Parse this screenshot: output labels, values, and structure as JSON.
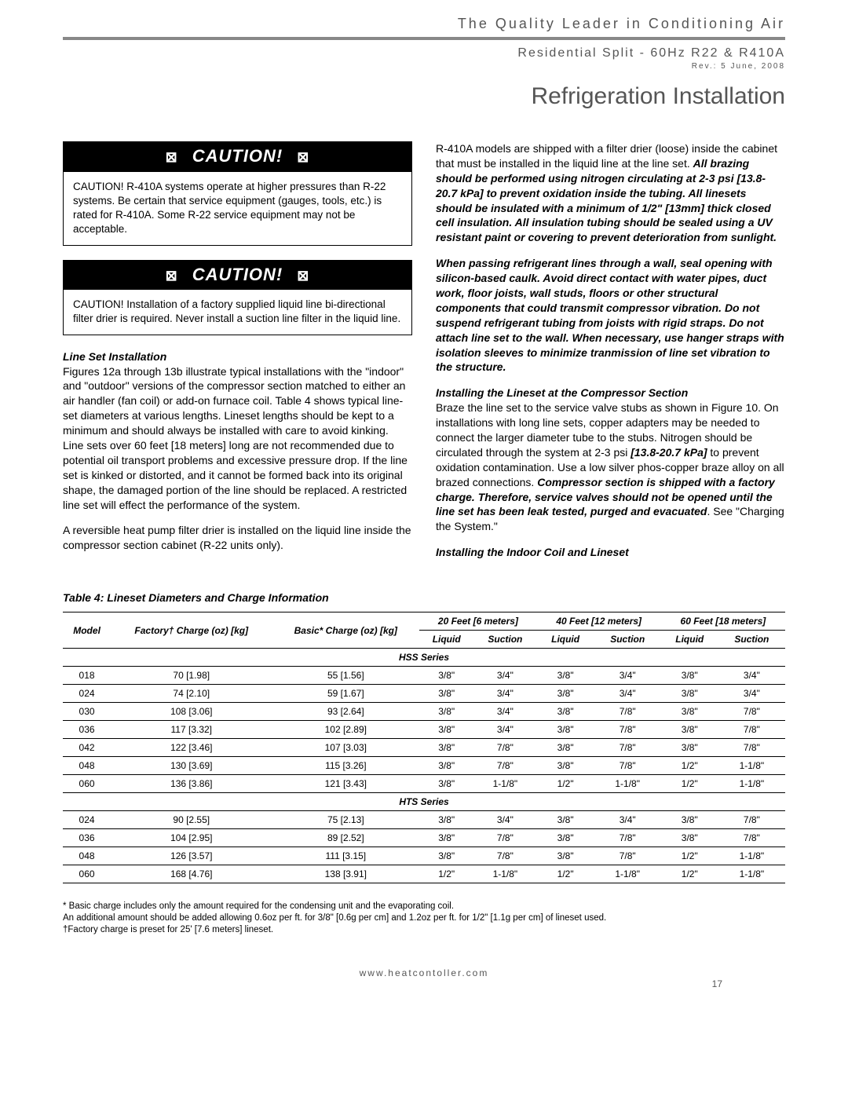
{
  "header": {
    "tagline": "The Quality Leader in Conditioning Air",
    "subhead": "Residential Split - 60Hz R22 & R410A",
    "rev": "Rev.: 5 June, 2008",
    "page_title": "Refrigeration Installation"
  },
  "caution1": {
    "label": "CAUTION!",
    "body": "CAUTION!  R-410A systems operate at higher pressures than R-22 systems. Be certain that service equipment (gauges, tools, etc.) is rated for R-410A. Some R-22 service equipment may not be acceptable."
  },
  "caution2": {
    "label": "CAUTION!",
    "body": "CAUTION!  Installation of a factory supplied liquid line bi-directional filter drier is required. Never install a suction line filter in the liquid line."
  },
  "left": {
    "lineSetHead": "Line Set Installation",
    "p1": "Figures 12a through 13b illustrate typical installations with the \"indoor\" and \"outdoor\" versions of the compressor section matched to either an air handler (fan coil) or add-on furnace coil. Table 4 shows typical line-set diameters at various lengths. Lineset lengths should be kept to a minimum and should always be installed with care to avoid kinking. Line sets over 60 feet [18 meters] long are not recommended due to potential oil transport problems and excessive pressure drop. If the line set is kinked or distorted, and it cannot be formed back into its original shape, the damaged portion of the line should be replaced. A restricted line set will effect the performance of the system.",
    "p2": "A reversible heat pump filter drier is installed on the liquid line inside the compressor section cabinet (R-22 units only)."
  },
  "right": {
    "p1a": "R-410A models are shipped with a filter drier (loose) inside the cabinet that must be installed in the liquid line at the line set. ",
    "p1b": "All brazing should be performed using nitrogen circulating at 2-3 psi [13.8-20.7 kPa] to prevent oxidation inside the tubing. All linesets should be insulated with a minimum of 1/2\" [13mm] thick closed cell insulation. All insulation tubing should be sealed using a UV resistant paint or covering to prevent deterioration from sunlight.",
    "p2": "When passing refrigerant lines through a wall, seal opening with silicon-based caulk. Avoid direct contact with water pipes, duct work, floor joists, wall studs, floors or other structural components that could transmit compressor vibration. Do not suspend refrigerant tubing from joists with rigid straps. Do not attach line set to the wall. When necessary, use hanger straps with isolation sleeves to minimize tranmission of line set vibration to the structure.",
    "compHead": "Installing the Lineset at the Compressor Section",
    "p3a": "Braze the line set to the service valve stubs as shown in Figure 10. On installations with long line sets, copper adapters may be needed to connect the larger diameter tube to the stubs. Nitrogen should be circulated through the system at 2-3 psi ",
    "p3b": "[13.8-20.7 kPa]",
    "p3c": " to prevent oxidation contamination. Use a low silver phos-copper braze alloy on all brazed connections. ",
    "p3d": "Compressor section is shipped with a factory charge. Therefore, service valves should not be opened until the line set has been leak tested, purged and evacuated",
    "p3e": ". See \"Charging the System.\"",
    "indoorHead": "Installing the Indoor Coil and Lineset"
  },
  "table": {
    "title": "Table 4: Lineset Diameters and Charge Information",
    "headers": {
      "model": "Model",
      "factory": "Factory† Charge (oz) [kg]",
      "basic": "Basic* Charge (oz) [kg]",
      "d20": "20 Feet [6 meters]",
      "d40": "40 Feet [12 meters]",
      "d60": "60 Feet [18 meters]",
      "liquid": "Liquid",
      "suction": "Suction"
    },
    "group1": "HSS Series",
    "hss": [
      {
        "m": "018",
        "f": "70 [1.98]",
        "b": "55 [1.56]",
        "l1": "3/8\"",
        "s1": "3/4\"",
        "l2": "3/8\"",
        "s2": "3/4\"",
        "l3": "3/8\"",
        "s3": "3/4\""
      },
      {
        "m": "024",
        "f": "74 [2.10]",
        "b": "59 [1.67]",
        "l1": "3/8\"",
        "s1": "3/4\"",
        "l2": "3/8\"",
        "s2": "3/4\"",
        "l3": "3/8\"",
        "s3": "3/4\""
      },
      {
        "m": "030",
        "f": "108 [3.06]",
        "b": "93 [2.64]",
        "l1": "3/8\"",
        "s1": "3/4\"",
        "l2": "3/8\"",
        "s2": "7/8\"",
        "l3": "3/8\"",
        "s3": "7/8\""
      },
      {
        "m": "036",
        "f": "117 [3.32]",
        "b": "102 [2.89]",
        "l1": "3/8\"",
        "s1": "3/4\"",
        "l2": "3/8\"",
        "s2": "7/8\"",
        "l3": "3/8\"",
        "s3": "7/8\""
      },
      {
        "m": "042",
        "f": "122 [3.46]",
        "b": "107 [3.03]",
        "l1": "3/8\"",
        "s1": "7/8\"",
        "l2": "3/8\"",
        "s2": "7/8\"",
        "l3": "3/8\"",
        "s3": "7/8\""
      },
      {
        "m": "048",
        "f": "130 [3.69]",
        "b": "115 [3.26]",
        "l1": "3/8\"",
        "s1": "7/8\"",
        "l2": "3/8\"",
        "s2": "7/8\"",
        "l3": "1/2\"",
        "s3": "1-1/8\""
      },
      {
        "m": "060",
        "f": "136 [3.86]",
        "b": "121 [3.43]",
        "l1": "3/8\"",
        "s1": "1-1/8\"",
        "l2": "1/2\"",
        "s2": "1-1/8\"",
        "l3": "1/2\"",
        "s3": "1-1/8\""
      }
    ],
    "group2": "HTS Series",
    "hts": [
      {
        "m": "024",
        "f": "90 [2.55]",
        "b": "75 [2.13]",
        "l1": "3/8\"",
        "s1": "3/4\"",
        "l2": "3/8\"",
        "s2": "3/4\"",
        "l3": "3/8\"",
        "s3": "7/8\""
      },
      {
        "m": "036",
        "f": "104 [2.95]",
        "b": "89 [2.52]",
        "l1": "3/8\"",
        "s1": "7/8\"",
        "l2": "3/8\"",
        "s2": "7/8\"",
        "l3": "3/8\"",
        "s3": "7/8\""
      },
      {
        "m": "048",
        "f": "126 [3.57]",
        "b": "111 [3.15]",
        "l1": "3/8\"",
        "s1": "7/8\"",
        "l2": "3/8\"",
        "s2": "7/8\"",
        "l3": "1/2\"",
        "s3": "1-1/8\""
      },
      {
        "m": "060",
        "f": "168 [4.76]",
        "b": "138 [3.91]",
        "l1": "1/2\"",
        "s1": "1-1/8\"",
        "l2": "1/2\"",
        "s2": "1-1/8\"",
        "l3": "1/2\"",
        "s3": "1-1/8\""
      }
    ]
  },
  "notes": {
    "n1": "* Basic charge includes only the amount required for the condensing unit and the evaporating coil.",
    "n2": "  An additional amount should be added allowing 0.6oz per ft. for 3/8\" [0.6g per cm] and 1.2oz per ft. for 1/2\" [1.1g per cm] of lineset used.",
    "n3": "†Factory charge is preset for 25' [7.6 meters] lineset."
  },
  "footer": {
    "url": "www.heatcontoller.com",
    "page": "17"
  }
}
